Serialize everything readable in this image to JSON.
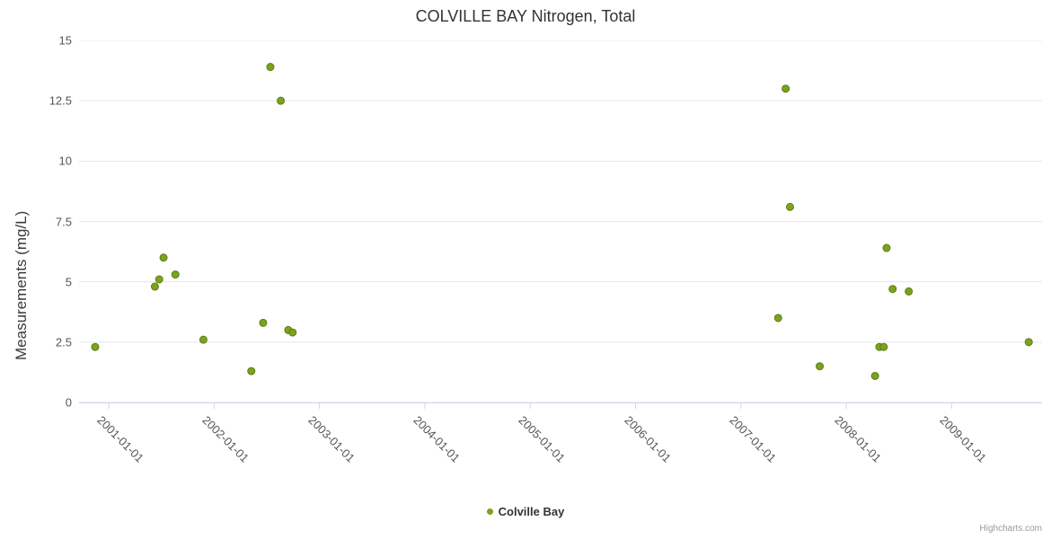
{
  "chart_data": {
    "type": "scatter",
    "title": "COLVILLE BAY Nitrogen, Total",
    "xlabel": "",
    "ylabel": "Measurements (mg/L)",
    "series": [
      {
        "name": "Colville Bay",
        "points": [
          {
            "x": "2000-11-15",
            "y": 2.3
          },
          {
            "x": "2001-06-10",
            "y": 4.8
          },
          {
            "x": "2001-06-25",
            "y": 5.1
          },
          {
            "x": "2001-07-10",
            "y": 6.0
          },
          {
            "x": "2001-08-20",
            "y": 5.3
          },
          {
            "x": "2001-11-25",
            "y": 2.6
          },
          {
            "x": "2002-05-10",
            "y": 1.3
          },
          {
            "x": "2002-06-20",
            "y": 3.3
          },
          {
            "x": "2002-07-15",
            "y": 13.9
          },
          {
            "x": "2002-08-20",
            "y": 12.5
          },
          {
            "x": "2002-09-15",
            "y": 3.0
          },
          {
            "x": "2002-09-30",
            "y": 2.9
          },
          {
            "x": "2007-05-10",
            "y": 3.5
          },
          {
            "x": "2007-06-05",
            "y": 13.0
          },
          {
            "x": "2007-06-20",
            "y": 8.1
          },
          {
            "x": "2007-10-01",
            "y": 1.5
          },
          {
            "x": "2008-04-10",
            "y": 1.1
          },
          {
            "x": "2008-04-25",
            "y": 2.3
          },
          {
            "x": "2008-05-10",
            "y": 2.3
          },
          {
            "x": "2008-05-20",
            "y": 6.4
          },
          {
            "x": "2008-06-10",
            "y": 4.7
          },
          {
            "x": "2008-08-05",
            "y": 4.6
          },
          {
            "x": "2009-09-25",
            "y": 2.5
          }
        ]
      }
    ],
    "ylim": [
      0,
      15
    ],
    "y_ticks": [
      0,
      2.5,
      5,
      7.5,
      10,
      12.5,
      15
    ],
    "y_tick_labels": [
      "0",
      "2.5",
      "5",
      "7.5",
      "10",
      "12.5",
      "15"
    ],
    "x_tick_labels": [
      "2001-01-01",
      "2002-01-01",
      "2003-01-01",
      "2004-01-01",
      "2005-01-01",
      "2006-01-01",
      "2007-01-01",
      "2008-01-01",
      "2009-01-01"
    ],
    "x_range": [
      "2000-09-20",
      "2009-11-10"
    ],
    "grid": "horizontal-only",
    "legend_position": "bottom-center",
    "colors": {
      "marker_fill": "#7aa31e",
      "marker_stroke": "#5e7d12",
      "gridline": "#e6e6e6",
      "axis_line": "#ccd6eb",
      "title_text": "#333333",
      "label_text": "#555555"
    }
  },
  "legend": {
    "label": "Colville Bay"
  },
  "credit": "Highcharts.com"
}
